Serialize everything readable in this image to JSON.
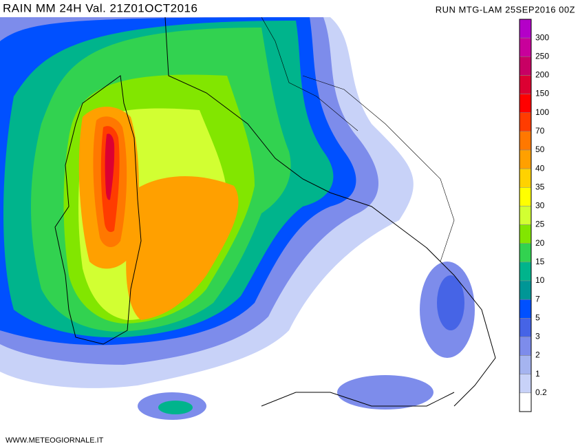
{
  "header": {
    "title": "RAIN  MM 24H Val. 21Z01OCT2016",
    "run": "RUN MTG-LAM 25SEP2016 00Z"
  },
  "legend": {
    "labels": [
      "300",
      "250",
      "200",
      "150",
      "100",
      "70",
      "50",
      "40",
      "35",
      "30",
      "25",
      "20",
      "15",
      "10",
      "7",
      "5",
      "3",
      "2",
      "1",
      "0.2"
    ],
    "colors": [
      "#b400c8",
      "#c8009b",
      "#c80064",
      "#dc0032",
      "#ff0000",
      "#ff3c00",
      "#ff7800",
      "#ffa000",
      "#ffd200",
      "#ffff00",
      "#d2ff32",
      "#82e600",
      "#32d250",
      "#00b48c",
      "#009696",
      "#0050ff",
      "#4664e6",
      "#7d8ceb",
      "#a5b4f0",
      "#c8d2f8",
      "#ffffff"
    ]
  },
  "footer": {
    "site": "WWW.METEOGIORNALE.IT"
  }
}
